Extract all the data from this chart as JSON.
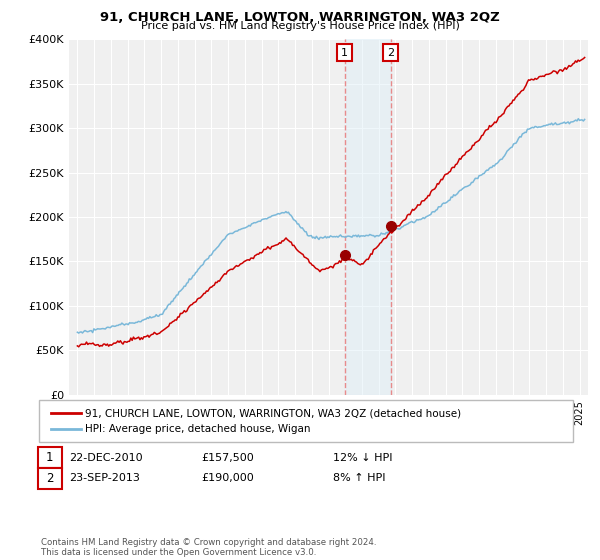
{
  "title": "91, CHURCH LANE, LOWTON, WARRINGTON, WA3 2QZ",
  "subtitle": "Price paid vs. HM Land Registry's House Price Index (HPI)",
  "legend_line1": "91, CHURCH LANE, LOWTON, WARRINGTON, WA3 2QZ (detached house)",
  "legend_line2": "HPI: Average price, detached house, Wigan",
  "annotation1_date": "22-DEC-2010",
  "annotation1_price": "£157,500",
  "annotation1_hpi": "12% ↓ HPI",
  "annotation2_date": "23-SEP-2013",
  "annotation2_price": "£190,000",
  "annotation2_hpi": "8% ↑ HPI",
  "footer": "Contains HM Land Registry data © Crown copyright and database right 2024.\nThis data is licensed under the Open Government Licence v3.0.",
  "sale1_x": 2010.97,
  "sale1_y": 157500,
  "sale2_x": 2013.73,
  "sale2_y": 190000,
  "hpi_color": "#7ab8d9",
  "price_color": "#cc0000",
  "sale_dot_color": "#990000",
  "vline_color": "#e88080",
  "vshade_color": "#ddeef8",
  "ylim_min": 0,
  "ylim_max": 400000,
  "xlim_min": 1994.5,
  "xlim_max": 2025.5,
  "yticks": [
    0,
    50000,
    100000,
    150000,
    200000,
    250000,
    300000,
    350000,
    400000
  ],
  "background_color": "#f0f0f0"
}
